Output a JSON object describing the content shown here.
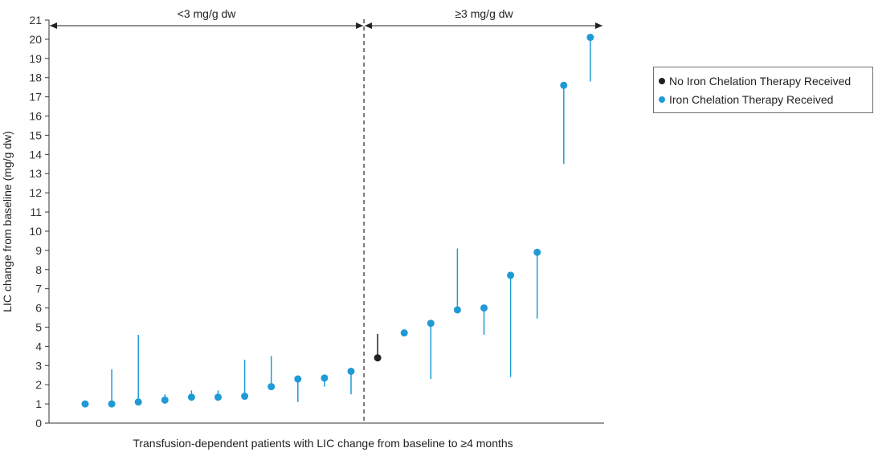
{
  "chart_data": {
    "type": "scatter",
    "ylabel": "LIC change from baseline (mg/g dw)",
    "xlabel": "Transfusion-dependent patients with LIC change from baseline to ≥4 months",
    "ylim": [
      0,
      21
    ],
    "yticks": [
      0,
      1,
      2,
      3,
      4,
      5,
      6,
      7,
      8,
      9,
      10,
      11,
      12,
      13,
      14,
      15,
      16,
      17,
      18,
      19,
      20,
      21
    ],
    "grid": false,
    "legend_position": "right",
    "regions": [
      {
        "label": "<3 mg/g dw"
      },
      {
        "label": "≥3 mg/g dw"
      }
    ],
    "region_split_after_index": 10,
    "series": [
      {
        "name": "No Iron Chelation Therapy Received",
        "color": "#231f20"
      },
      {
        "name": "Iron Chelation Therapy Received",
        "color": "#1f9ad6"
      }
    ],
    "points": [
      {
        "patient": 1,
        "series": 1,
        "value": 1.0,
        "bar_low": 1.0,
        "bar_high": 1.0
      },
      {
        "patient": 2,
        "series": 1,
        "value": 1.0,
        "bar_low": 1.0,
        "bar_high": 2.8
      },
      {
        "patient": 3,
        "series": 1,
        "value": 1.1,
        "bar_low": 1.1,
        "bar_high": 4.6
      },
      {
        "patient": 4,
        "series": 1,
        "value": 1.2,
        "bar_low": 1.2,
        "bar_high": 1.5
      },
      {
        "patient": 5,
        "series": 1,
        "value": 1.35,
        "bar_low": 1.35,
        "bar_high": 1.7
      },
      {
        "patient": 6,
        "series": 1,
        "value": 1.35,
        "bar_low": 1.35,
        "bar_high": 1.7
      },
      {
        "patient": 7,
        "series": 1,
        "value": 1.4,
        "bar_low": 1.4,
        "bar_high": 3.3
      },
      {
        "patient": 8,
        "series": 1,
        "value": 1.9,
        "bar_low": 1.9,
        "bar_high": 3.5
      },
      {
        "patient": 9,
        "series": 1,
        "value": 2.3,
        "bar_low": 1.1,
        "bar_high": 2.3
      },
      {
        "patient": 10,
        "series": 1,
        "value": 2.35,
        "bar_low": 1.9,
        "bar_high": 2.35
      },
      {
        "patient": 11,
        "series": 1,
        "value": 2.7,
        "bar_low": 1.5,
        "bar_high": 2.7
      },
      {
        "patient": 12,
        "series": 0,
        "value": 3.4,
        "bar_low": 3.4,
        "bar_high": 4.65
      },
      {
        "patient": 13,
        "series": 1,
        "value": 4.7,
        "bar_low": 4.7,
        "bar_high": 4.7
      },
      {
        "patient": 14,
        "series": 1,
        "value": 5.2,
        "bar_low": 2.3,
        "bar_high": 5.2
      },
      {
        "patient": 15,
        "series": 1,
        "value": 5.9,
        "bar_low": 5.9,
        "bar_high": 9.1
      },
      {
        "patient": 16,
        "series": 1,
        "value": 6.0,
        "bar_low": 4.6,
        "bar_high": 6.0
      },
      {
        "patient": 17,
        "series": 1,
        "value": 7.7,
        "bar_low": 2.4,
        "bar_high": 7.7
      },
      {
        "patient": 18,
        "series": 1,
        "value": 8.9,
        "bar_low": 5.45,
        "bar_high": 8.9
      },
      {
        "patient": 19,
        "series": 1,
        "value": 17.6,
        "bar_low": 13.5,
        "bar_high": 17.6
      },
      {
        "patient": 20,
        "series": 1,
        "value": 20.1,
        "bar_low": 17.8,
        "bar_high": 20.1
      }
    ]
  }
}
